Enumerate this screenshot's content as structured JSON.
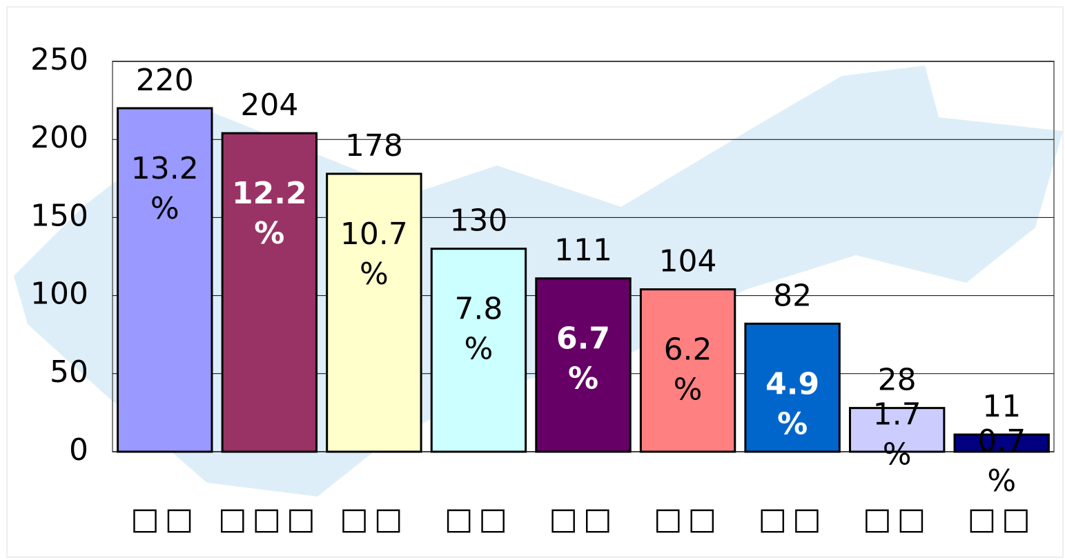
{
  "chart_data": {
    "type": "bar",
    "categories": [
      "□□",
      "□□□",
      "□□",
      "□□",
      "□□",
      "□□",
      "□□",
      "□□",
      "□□"
    ],
    "values": [
      220,
      204,
      178,
      130,
      111,
      104,
      82,
      28,
      11
    ],
    "shares": [
      "13.2%",
      "12.2%",
      "10.7%",
      "7.8%",
      "6.7%",
      "6.2%",
      "4.9%",
      "1.7%",
      "0.7%"
    ],
    "colors": [
      "#9999ff",
      "#993366",
      "#ffffcc",
      "#ccffff",
      "#660066",
      "#ff8080",
      "#0066cc",
      "#ccccff",
      "#000080"
    ],
    "share_label_colors": [
      "#000000",
      "#ffffff",
      "#000000",
      "#000000",
      "#ffffff",
      "#000000",
      "#ffffff",
      "#000000",
      "#000000"
    ],
    "ylim": [
      0,
      250
    ],
    "yticks": [
      0,
      50,
      100,
      150,
      200,
      250
    ],
    "grid": true
  }
}
